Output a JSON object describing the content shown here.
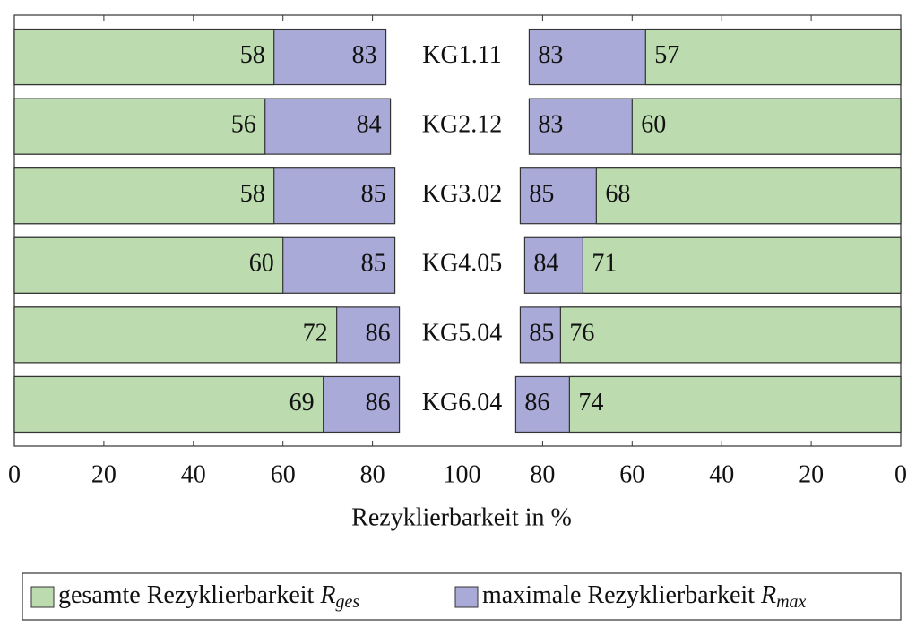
{
  "chart_data": {
    "type": "butterfly-bar",
    "categories": [
      "KG1.11",
      "KG2.12",
      "KG3.02",
      "KG4.05",
      "KG5.04",
      "KG6.04"
    ],
    "series": [
      {
        "name": "gesamte Rezyklierbarkeit",
        "symbol": "R",
        "symbol_sub": "ges",
        "color": "#bcdcb0",
        "values": [
          58,
          56,
          58,
          60,
          72,
          69
        ],
        "values_right": [
          57,
          60,
          68,
          71,
          76,
          74
        ]
      },
      {
        "name": "maximale Rezyklierbarkeit",
        "symbol": "R",
        "symbol_sub": "max",
        "color": "#aaaad8",
        "values": [
          83,
          84,
          85,
          85,
          86,
          86
        ],
        "values_right": [
          83,
          83,
          85,
          84,
          85,
          86
        ]
      }
    ],
    "xlim": [
      0,
      100
    ],
    "xticks": [
      0,
      20,
      40,
      60,
      80,
      100
    ],
    "xticks_right": [
      80,
      60,
      40,
      20,
      0
    ],
    "x_label": "Rezyklierbarkeit in %"
  }
}
